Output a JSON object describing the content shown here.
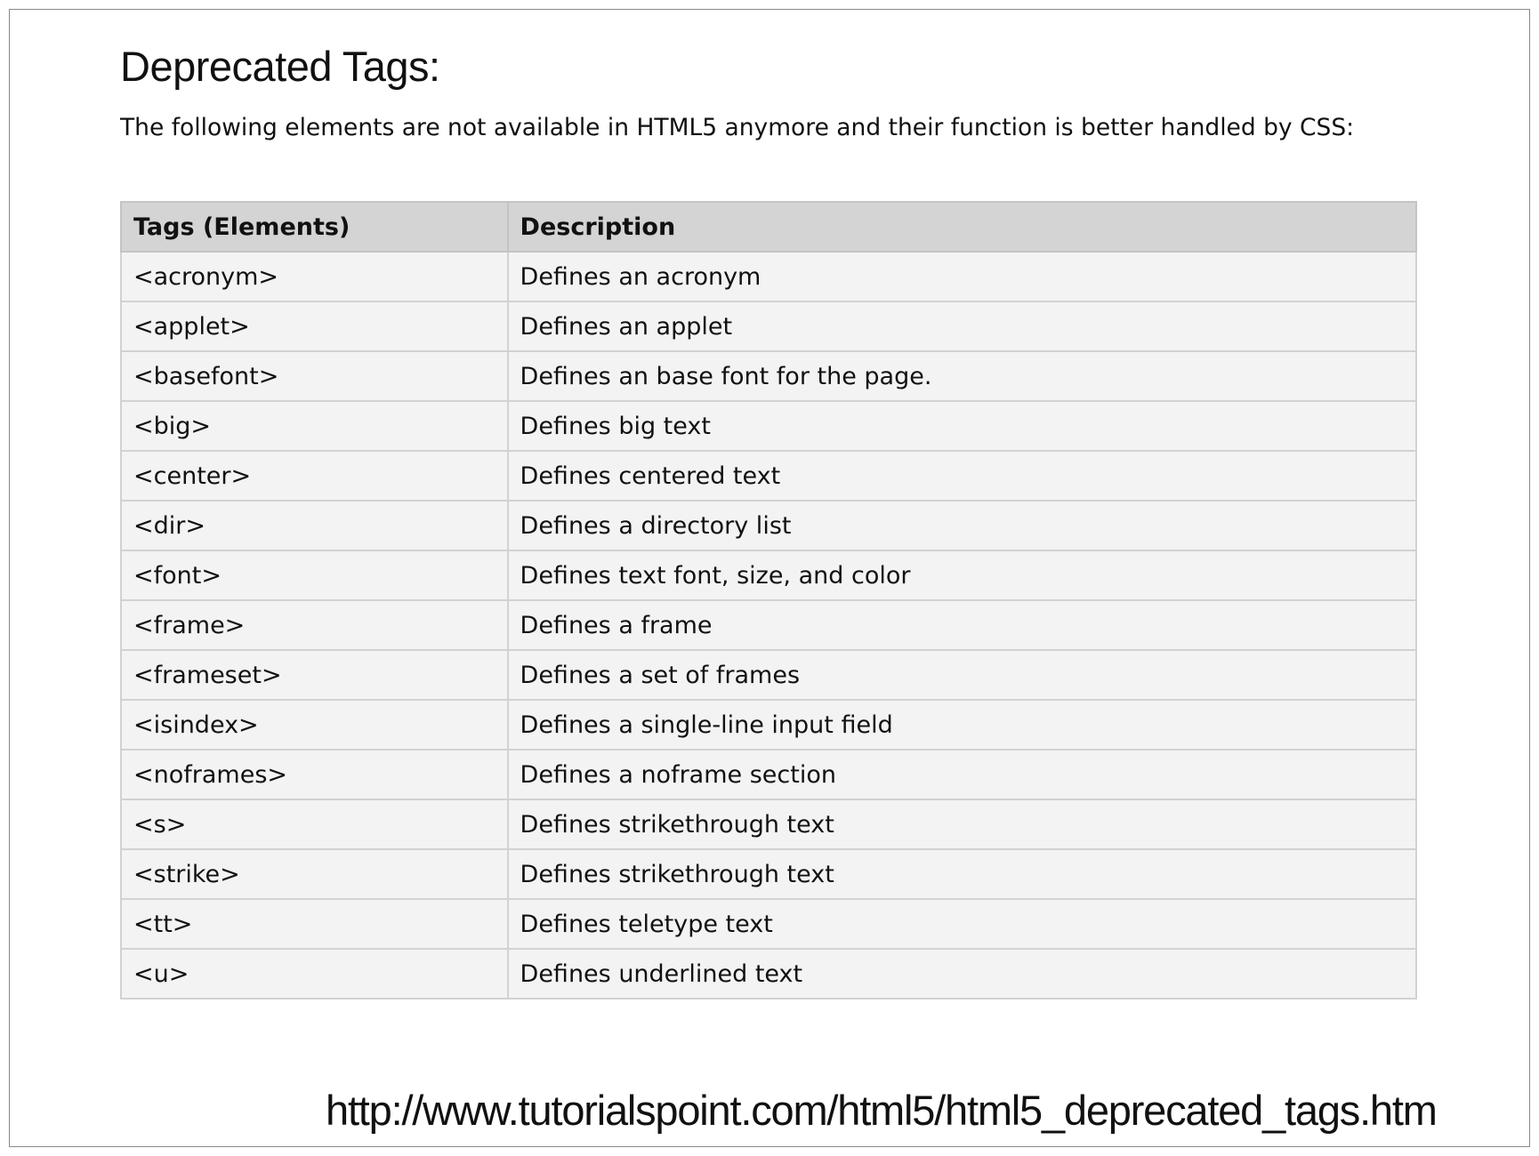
{
  "title": "Deprecated Tags:",
  "intro": "The following elements are not available in HTML5 anymore and their function is better handled by CSS:",
  "table": {
    "headers": [
      "Tags (Elements)",
      "Description"
    ],
    "rows": [
      [
        "<acronym>",
        "Defines an acronym"
      ],
      [
        "<applet>",
        "Defines an applet"
      ],
      [
        "<basefont>",
        "Defines an base font for the page."
      ],
      [
        "<big>",
        "Defines big text"
      ],
      [
        "<center>",
        "Defines centered text"
      ],
      [
        "<dir>",
        "Defines a directory list"
      ],
      [
        "<font>",
        "Defines text font, size, and color"
      ],
      [
        "<frame>",
        "Defines a frame"
      ],
      [
        "<frameset>",
        "Defines a set of frames"
      ],
      [
        "<isindex>",
        "Defines a single-line input field"
      ],
      [
        "<noframes>",
        "Defines a noframe section"
      ],
      [
        "<s>",
        "Defines strikethrough text"
      ],
      [
        "<strike>",
        "Defines strikethrough text"
      ],
      [
        "<tt>",
        "Defines teletype text"
      ],
      [
        "<u>",
        "Defines underlined text"
      ]
    ]
  },
  "source_url": "http://www.tutorialspoint.com/html5/html5_deprecated_tags.htm"
}
